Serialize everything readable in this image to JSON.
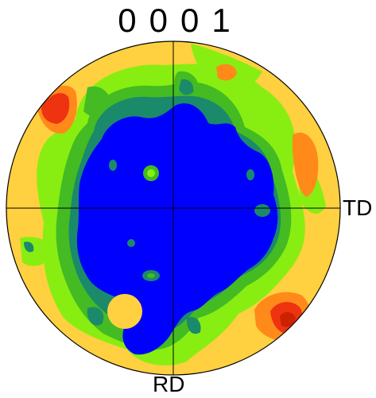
{
  "figure": {
    "plane_index": [
      "0",
      "0",
      "0",
      "1"
    ],
    "axis_right_label": "TD",
    "axis_bottom_label": "RD"
  },
  "colors": {
    "level_1": "#0000ff",
    "level_2": "#1a8a6a",
    "level_3": "#44bb22",
    "level_4": "#88ee11",
    "level_5": "#ffd040",
    "level_6": "#ff8a1a",
    "level_7": "#ee3311",
    "circle_outline": "#000000"
  }
}
